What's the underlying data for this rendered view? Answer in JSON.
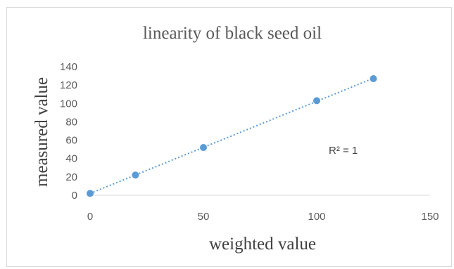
{
  "chart_data": {
    "type": "scatter",
    "title": "linearity of black seed oil",
    "xlabel": "weighted value",
    "ylabel": "measured value",
    "xlim": [
      0,
      150
    ],
    "ylim": [
      0,
      140
    ],
    "x_ticks": [
      "0",
      "50",
      "100",
      "150"
    ],
    "y_ticks": [
      "0",
      "20",
      "40",
      "60",
      "80",
      "100",
      "120",
      "140"
    ],
    "grid": false,
    "legend": "none",
    "series": [
      {
        "x": [
          0,
          20,
          50,
          100,
          125
        ],
        "y": [
          2,
          22,
          52,
          103,
          127
        ],
        "color": "#5b9bd5"
      }
    ],
    "trendline": {
      "type": "linear",
      "style": "dotted",
      "color": "#5b9bd5",
      "annotation": "R² = 1"
    }
  }
}
